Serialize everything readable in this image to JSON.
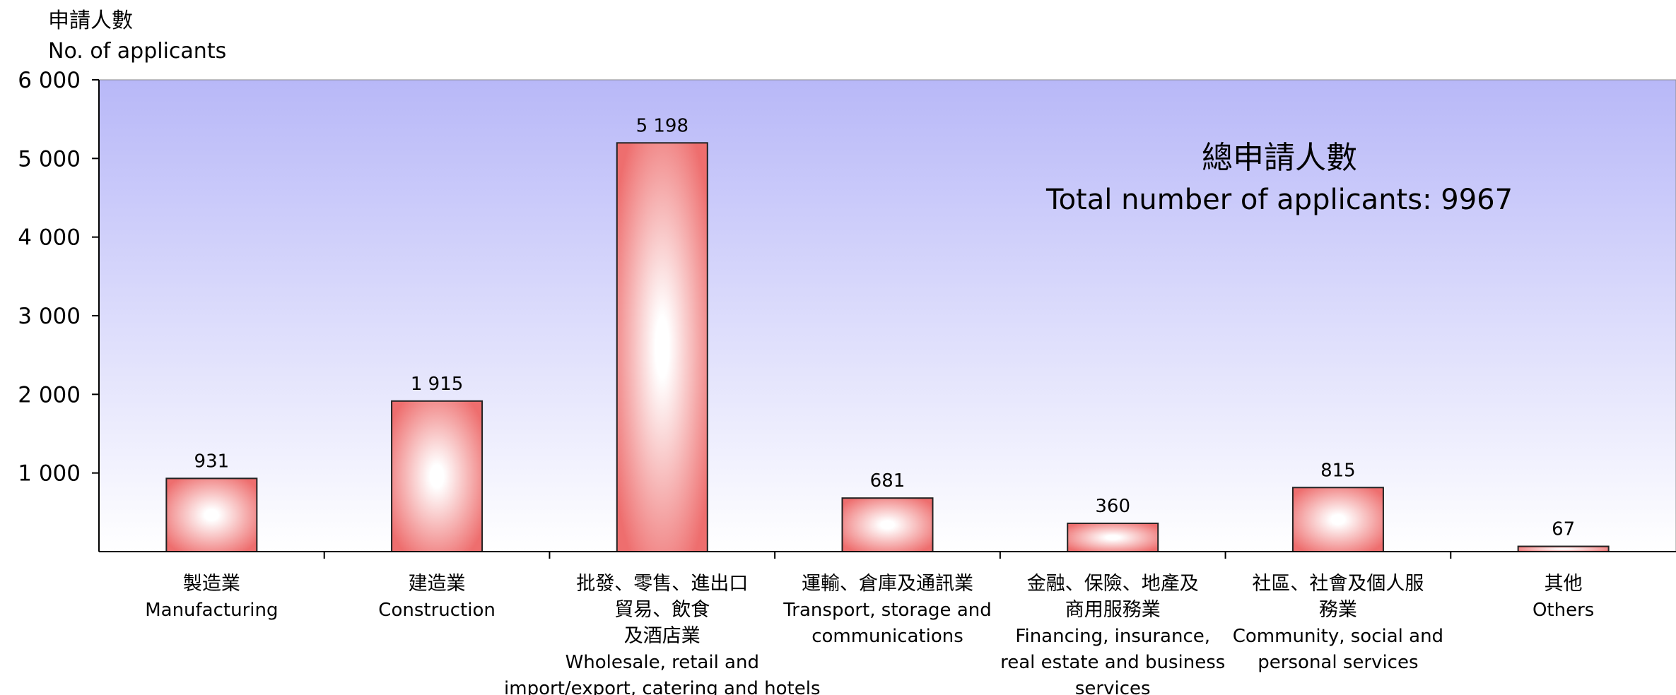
{
  "chart_data": {
    "type": "bar",
    "ylabel_zh": "申請人數",
    "ylabel_en": "No. of applicants",
    "ylim": [
      0,
      6000
    ],
    "yticks": [
      1000,
      2000,
      3000,
      4000,
      5000,
      6000
    ],
    "ytick_labels": [
      "1 000",
      "2 000",
      "3 000",
      "4 000",
      "5 000",
      "6 000"
    ],
    "grid": false,
    "annotation": {
      "zh": "總申請人數",
      "en": "Total number of applicants: 9967"
    },
    "categories": [
      {
        "zh": [
          "製造業"
        ],
        "en": [
          "Manufacturing"
        ],
        "value": 931,
        "value_label": "931"
      },
      {
        "zh": [
          "建造業"
        ],
        "en": [
          "Construction"
        ],
        "value": 1915,
        "value_label": "1 915"
      },
      {
        "zh": [
          "批發、零售、進出口",
          "貿易、飲食",
          "及酒店業"
        ],
        "en": [
          "Wholesale, retail and",
          "import/export, catering and hotels"
        ],
        "value": 5198,
        "value_label": "5 198"
      },
      {
        "zh": [
          "運輸、倉庫及通訊業"
        ],
        "en": [
          "Transport, storage and",
          "communications"
        ],
        "value": 681,
        "value_label": "681"
      },
      {
        "zh": [
          "金融、保險、地產及",
          "商用服務業"
        ],
        "en": [
          "Financing, insurance,",
          "real estate and business",
          "services"
        ],
        "value": 360,
        "value_label": "360"
      },
      {
        "zh": [
          "社區、社會及個人服",
          "務業"
        ],
        "en": [
          "Community, social and",
          "personal services"
        ],
        "value": 815,
        "value_label": "815"
      },
      {
        "zh": [
          "其他"
        ],
        "en": [
          "Others"
        ],
        "value": 67,
        "value_label": "67"
      }
    ],
    "colors": {
      "plot_top": "#b8b8f8",
      "plot_bottom": "#ffffff",
      "bar_edge": "#ee6e6e",
      "bar_center": "#ffffff",
      "bar_stroke": "#222222"
    }
  }
}
